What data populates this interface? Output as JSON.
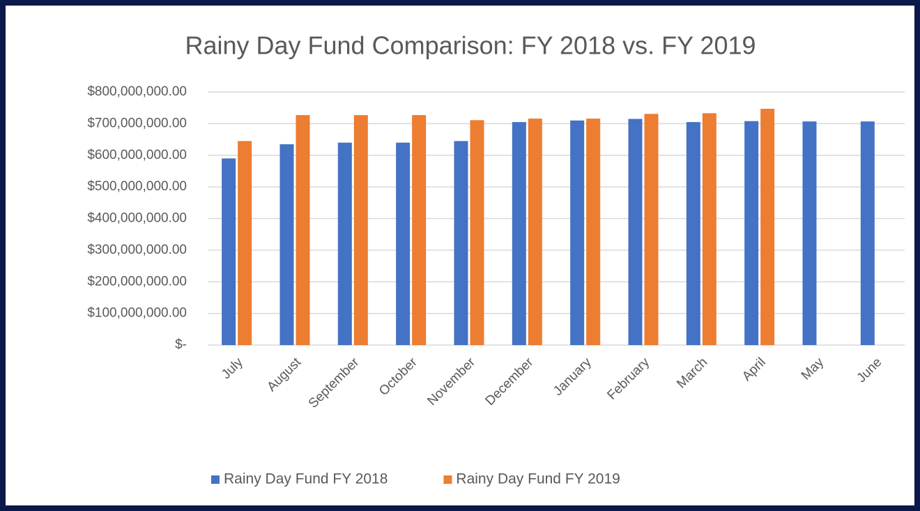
{
  "chart_data": {
    "type": "bar",
    "title": "Rainy Day Fund Comparison: FY 2018 vs. FY 2019",
    "categories": [
      "July",
      "August",
      "September",
      "October",
      "November",
      "December",
      "January",
      "February",
      "March",
      "April",
      "May",
      "June"
    ],
    "series": [
      {
        "name": "Rainy Day Fund FY 2018",
        "color": "#4472c4",
        "values": [
          590000000,
          635000000,
          640000000,
          640000000,
          645000000,
          705000000,
          710000000,
          715000000,
          705000000,
          708000000,
          707000000,
          707000000
        ]
      },
      {
        "name": "Rainy Day Fund FY 2019",
        "color": "#ed7d31",
        "values": [
          645000000,
          727000000,
          727000000,
          727000000,
          711000000,
          716000000,
          716000000,
          731000000,
          733000000,
          747000000,
          null,
          null
        ]
      }
    ],
    "ylim": [
      0,
      800000000
    ],
    "yticks": [
      {
        "value": 0,
        "label": "$-"
      },
      {
        "value": 100000000,
        "label": "$100,000,000.00"
      },
      {
        "value": 200000000,
        "label": "$200,000,000.00"
      },
      {
        "value": 300000000,
        "label": "$300,000,000.00"
      },
      {
        "value": 400000000,
        "label": "$400,000,000.00"
      },
      {
        "value": 500000000,
        "label": "$500,000,000.00"
      },
      {
        "value": 600000000,
        "label": "$600,000,000.00"
      },
      {
        "value": 700000000,
        "label": "$700,000,000.00"
      },
      {
        "value": 800000000,
        "label": "$800,000,000.00"
      }
    ],
    "grid": true,
    "legend": "bottom"
  }
}
